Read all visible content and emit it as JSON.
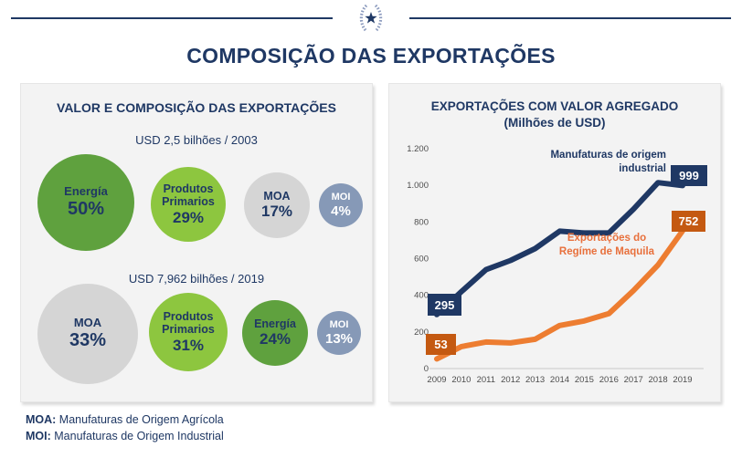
{
  "header": {
    "emblem_icon": "laurel-wreath-star-emblem"
  },
  "page_title": "COMPOSIÇÃO DAS EXPORTAÇÕES",
  "left_panel": {
    "title": "VALOR E COMPOSIÇÃO DAS EXPORTAÇÕES"
  },
  "right_panel": {
    "title_line1": "EXPORTAÇÕES COM VALOR AGREGADO",
    "title_line2": "(Milhões de USD)"
  },
  "chart_data": [
    {
      "type": "bubble",
      "title": "VALOR E COMPOSIÇÃO DAS EXPORTAÇÕES",
      "groups": [
        {
          "subtitle": "USD 2,5 bilhões / 2003",
          "items": [
            {
              "name": "Energía",
              "pct": 50,
              "label": "50%",
              "color": "#5FA13E",
              "text_color": "#1F3864"
            },
            {
              "name": "Produtos Primarios",
              "pct": 29,
              "label": "29%",
              "color": "#8DC63F",
              "text_color": "#1F3864"
            },
            {
              "name": "MOA",
              "pct": 17,
              "label": "17%",
              "color": "#D5D5D5",
              "text_color": "#1F3864"
            },
            {
              "name": "MOI",
              "pct": 4,
              "label": "4%",
              "color": "#8699B7",
              "text_color": "#FFFFFF"
            }
          ]
        },
        {
          "subtitle": "USD 7,962 bilhões / 2019",
          "items": [
            {
              "name": "MOA",
              "pct": 33,
              "label": "33%",
              "color": "#D5D5D5",
              "text_color": "#1F3864"
            },
            {
              "name": "Produtos Primarios",
              "pct": 31,
              "label": "31%",
              "color": "#8DC63F",
              "text_color": "#1F3864"
            },
            {
              "name": "Energía",
              "pct": 24,
              "label": "24%",
              "color": "#5FA13E",
              "text_color": "#1F3864"
            },
            {
              "name": "MOI",
              "pct": 13,
              "label": "13%",
              "color": "#8699B7",
              "text_color": "#FFFFFF"
            }
          ]
        }
      ]
    },
    {
      "type": "line",
      "title": "EXPORTAÇÕES COM VALOR AGREGADO (Milhões de USD)",
      "x": [
        "2009",
        "2010",
        "2011",
        "2012",
        "2013",
        "2014",
        "2015",
        "2016",
        "2017",
        "2018",
        "2019"
      ],
      "ylim": [
        0,
        1200
      ],
      "grid": false,
      "legend_position": "inline-annotations",
      "y_ticks": [
        {
          "label": "0",
          "value": 0
        },
        {
          "label": "200",
          "value": 200
        },
        {
          "label": "400",
          "value": 400
        },
        {
          "label": "600",
          "value": 600
        },
        {
          "label": "800",
          "value": 800
        },
        {
          "label": "1.000",
          "value": 1000
        },
        {
          "label": "1.200",
          "value": 1200
        }
      ],
      "series": [
        {
          "name": "Manufaturas de origem industrial",
          "color": "#1F3864",
          "label_box_color": "#1F3864",
          "values": [
            295,
            420,
            540,
            590,
            655,
            750,
            740,
            740,
            870,
            1015,
            999
          ],
          "first_label": "295",
          "last_label": "999"
        },
        {
          "name": "Exportações do Regíme de Maquila",
          "color": "#ED7D31",
          "label_box_color": "#C45911",
          "values": [
            53,
            120,
            145,
            140,
            160,
            235,
            260,
            300,
            425,
            565,
            752
          ],
          "first_label": "53",
          "last_label": "752"
        }
      ]
    }
  ],
  "footer": {
    "lines": [
      {
        "term": "MOA:",
        "definition": " Manufaturas de Origem Agrícola"
      },
      {
        "term": "MOI:",
        "definition": " Manufaturas de Origem Industrial"
      }
    ]
  },
  "colors": {
    "navy": "#1F3864",
    "orange_line": "#ED7D31",
    "orange_box": "#C45911",
    "panel_bg": "#F3F3F3"
  }
}
